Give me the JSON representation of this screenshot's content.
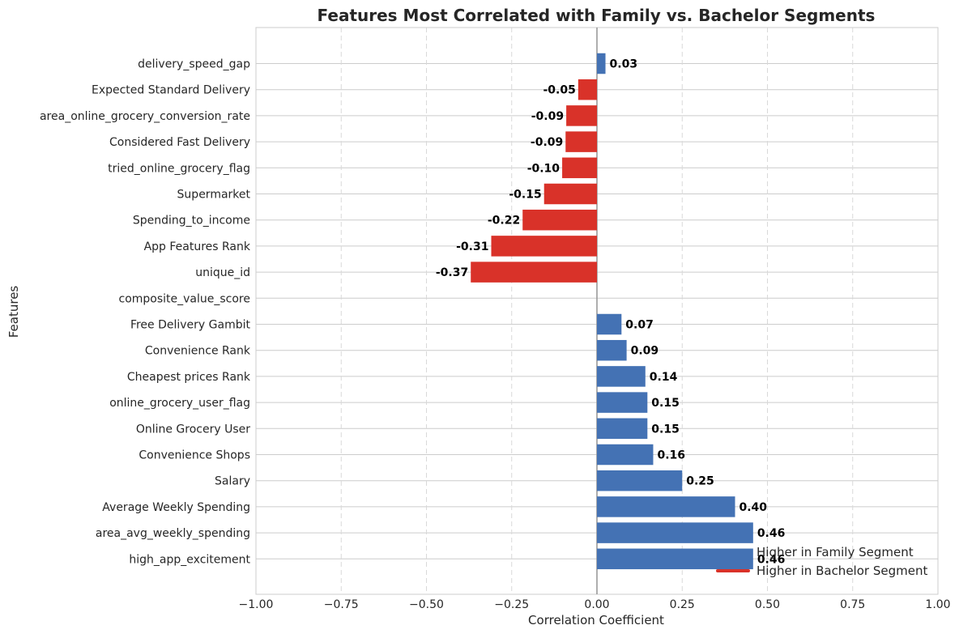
{
  "chart_data": {
    "type": "bar",
    "orientation": "horizontal",
    "title": "Features Most Correlated with Family vs. Bachelor Segments",
    "xlabel": "Correlation Coefficient",
    "ylabel": "Features",
    "xlim": [
      -1.0,
      1.0
    ],
    "xticks": [
      -1.0,
      -0.75,
      -0.5,
      -0.25,
      0.0,
      0.25,
      0.5,
      0.75,
      1.0
    ],
    "xtick_labels": [
      "−1.00",
      "−0.75",
      "−0.50",
      "−0.25",
      "0.00",
      "0.25",
      "0.50",
      "0.75",
      "1.00"
    ],
    "grid": true,
    "legend_position": "lower-right",
    "categories": [
      "delivery_speed_gap",
      "Expected Standard Delivery",
      "area_online_grocery_conversion_rate",
      "Considered Fast Delivery",
      "tried_online_grocery_flag",
      "Supermarket",
      "Spending_to_income",
      "App Features Rank",
      "unique_id",
      "composite_value_score",
      "Free Delivery Gambit",
      "Convenience Rank",
      "Cheapest prices Rank",
      "online_grocery_user_flag",
      "Online Grocery User",
      "Convenience Shops",
      "Salary",
      "Average Weekly Spending",
      "area_avg_weekly_spending",
      "high_app_excitement"
    ],
    "values": [
      0.025,
      -0.055,
      -0.09,
      -0.092,
      -0.102,
      -0.155,
      -0.218,
      -0.31,
      -0.37,
      0.0,
      0.072,
      0.087,
      0.142,
      0.148,
      0.148,
      0.165,
      0.25,
      0.405,
      0.458,
      0.458
    ],
    "value_labels": [
      "0.03",
      "-0.05",
      "-0.09",
      "-0.09",
      "-0.10",
      "-0.15",
      "-0.22",
      "-0.31",
      "-0.37",
      "",
      "0.07",
      "0.09",
      "0.14",
      "0.15",
      "0.15",
      "0.16",
      "0.25",
      "0.40",
      "0.46",
      "0.46"
    ],
    "series": [
      {
        "name": "Higher in Family Segment",
        "color": "#4472b4"
      },
      {
        "name": "Higher in Bachelor Segment",
        "color": "#d93229"
      }
    ]
  }
}
